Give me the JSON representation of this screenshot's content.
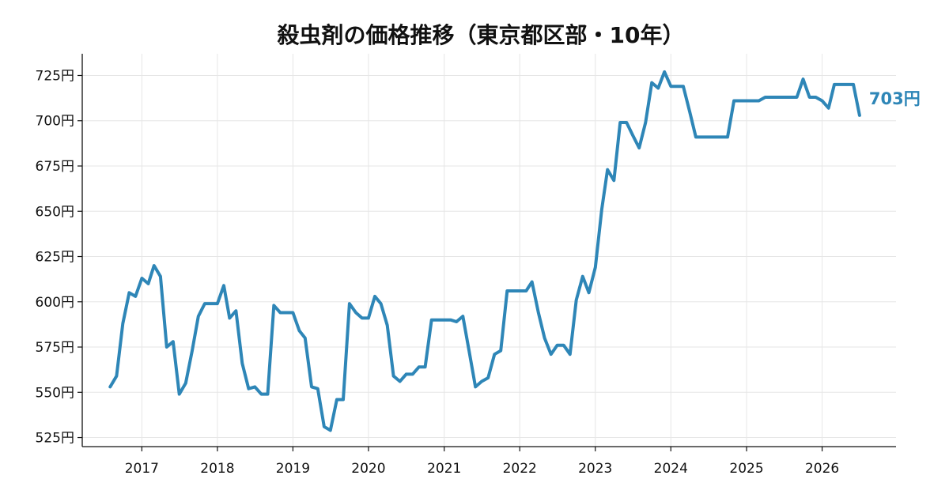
{
  "chart_data": {
    "type": "line",
    "title": "殺虫剤の価格推移（東京都区部・10年）",
    "xlabel": "",
    "ylabel": "",
    "y_unit": "円",
    "ylim": [
      520,
      737
    ],
    "xlim": [
      "2016-03-19",
      "2026-12-24"
    ],
    "y_ticks": [
      525,
      550,
      575,
      600,
      625,
      650,
      675,
      700,
      725
    ],
    "y_tick_labels": [
      "525円",
      "550円",
      "575円",
      "600円",
      "625円",
      "650円",
      "675円",
      "700円",
      "725円"
    ],
    "x_ticks": [
      "2017-01-01",
      "2018-01-01",
      "2019-01-01",
      "2020-01-01",
      "2021-01-01",
      "2022-01-01",
      "2023-01-01",
      "2024-01-01",
      "2025-01-01",
      "2026-01-01"
    ],
    "x_tick_labels": [
      "2017",
      "2018",
      "2019",
      "2020",
      "2021",
      "2022",
      "2023",
      "2024",
      "2025",
      "2026"
    ],
    "grid": true,
    "color": "#2e86b7",
    "end_label": "703円",
    "series": [
      {
        "x": [
          "2016-08",
          "2016-09",
          "2016-10",
          "2016-11",
          "2016-12",
          "2017-01",
          "2017-02",
          "2017-03",
          "2017-04",
          "2017-05",
          "2017-06",
          "2017-07",
          "2017-08",
          "2017-09",
          "2017-10",
          "2017-11",
          "2017-12",
          "2018-01",
          "2018-02",
          "2018-03",
          "2018-04",
          "2018-05",
          "2018-06",
          "2018-07",
          "2018-08",
          "2018-09",
          "2018-10",
          "2018-11",
          "2018-12",
          "2019-01",
          "2019-02",
          "2019-03",
          "2019-04",
          "2019-05",
          "2019-06",
          "2019-07",
          "2019-08",
          "2019-09",
          "2019-10",
          "2019-11",
          "2019-12",
          "2020-01",
          "2020-02",
          "2020-03",
          "2020-04",
          "2020-05",
          "2020-06",
          "2020-07",
          "2020-08",
          "2020-09",
          "2020-10",
          "2020-11",
          "2020-12",
          "2021-01",
          "2021-02",
          "2021-03",
          "2021-04",
          "2021-05",
          "2021-06",
          "2021-07",
          "2021-08",
          "2021-09",
          "2021-10",
          "2021-11",
          "2021-12",
          "2022-01",
          "2022-02",
          "2022-03",
          "2022-04",
          "2022-05",
          "2022-06",
          "2022-07",
          "2022-08",
          "2022-09",
          "2022-10",
          "2022-11",
          "2022-12",
          "2023-01",
          "2023-02",
          "2023-03",
          "2023-04",
          "2023-05",
          "2023-06",
          "2023-07",
          "2023-08",
          "2023-09",
          "2023-10",
          "2023-11",
          "2023-12",
          "2024-01",
          "2024-02",
          "2024-03",
          "2024-04",
          "2024-05",
          "2024-06",
          "2024-07",
          "2024-08",
          "2024-09",
          "2024-10",
          "2024-11",
          "2024-12",
          "2025-01",
          "2025-02",
          "2025-03",
          "2025-04",
          "2025-05",
          "2025-06",
          "2025-07",
          "2025-08",
          "2025-09",
          "2025-10",
          "2025-11",
          "2025-12",
          "2026-01",
          "2026-02",
          "2026-03",
          "2026-04",
          "2026-05",
          "2026-06",
          "2026-07"
        ],
        "values": [
          553,
          559,
          588,
          605,
          603,
          613,
          610,
          620,
          614,
          575,
          578,
          549,
          555,
          573,
          592,
          599,
          599,
          599,
          609,
          591,
          595,
          566,
          552,
          553,
          549,
          549,
          598,
          594,
          594,
          594,
          584,
          580,
          553,
          552,
          531,
          529,
          546,
          546,
          599,
          594,
          591,
          591,
          603,
          599,
          587,
          559,
          556,
          560,
          560,
          564,
          564,
          590,
          590,
          590,
          590,
          589,
          592,
          573,
          553,
          556,
          558,
          571,
          573,
          606,
          606,
          606,
          606,
          611,
          594,
          580,
          571,
          576,
          576,
          571,
          601,
          614,
          605,
          619,
          651,
          673,
          667,
          699,
          699,
          692,
          685,
          699,
          721,
          718,
          727,
          719,
          719,
          719,
          705,
          691,
          691,
          691,
          691,
          691,
          691,
          711,
          711,
          711,
          711,
          711,
          713,
          713,
          713,
          713,
          713,
          713,
          723,
          713,
          713,
          711,
          707,
          720,
          720,
          720,
          720,
          703
        ]
      }
    ]
  }
}
